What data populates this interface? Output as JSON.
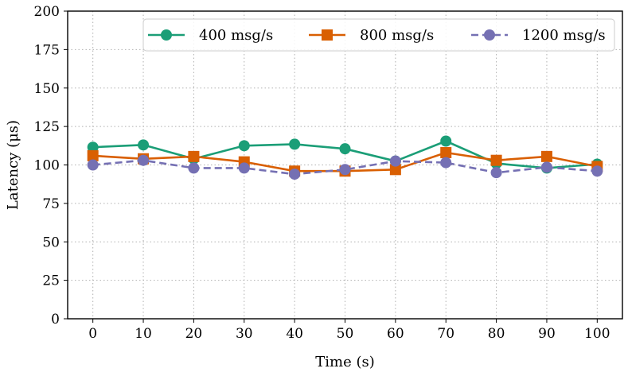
{
  "chart_data": {
    "type": "line",
    "title": "",
    "xlabel": "Time (s)",
    "ylabel": "Latency (μs)",
    "x": [
      0,
      10,
      20,
      30,
      40,
      50,
      60,
      70,
      80,
      90,
      100
    ],
    "xlim": [
      -5,
      105
    ],
    "ylim": [
      0,
      200
    ],
    "xticks": [
      0,
      10,
      20,
      30,
      40,
      50,
      60,
      70,
      80,
      90,
      100
    ],
    "yticks": [
      0,
      25,
      50,
      75,
      100,
      125,
      150,
      175,
      200
    ],
    "grid": true,
    "legend_position": "top-right",
    "series": [
      {
        "name": "400 msg/s",
        "color": "#1b9e77",
        "marker": "circle",
        "dash": "solid",
        "values": [
          111.5,
          113,
          104,
          112.5,
          113.5,
          110.5,
          102.5,
          115.5,
          101,
          98,
          100.5
        ]
      },
      {
        "name": "800 msg/s",
        "color": "#d95f02",
        "marker": "square",
        "dash": "solid",
        "values": [
          106,
          104,
          105.5,
          102,
          96,
          96,
          97,
          108,
          103,
          105.5,
          99
        ]
      },
      {
        "name": "1200 msg/s",
        "color": "#7570b3",
        "marker": "circle",
        "dash": "dashed",
        "values": [
          100,
          103,
          98,
          98,
          94,
          97,
          102.5,
          101.5,
          95,
          98.5,
          96
        ]
      }
    ]
  }
}
